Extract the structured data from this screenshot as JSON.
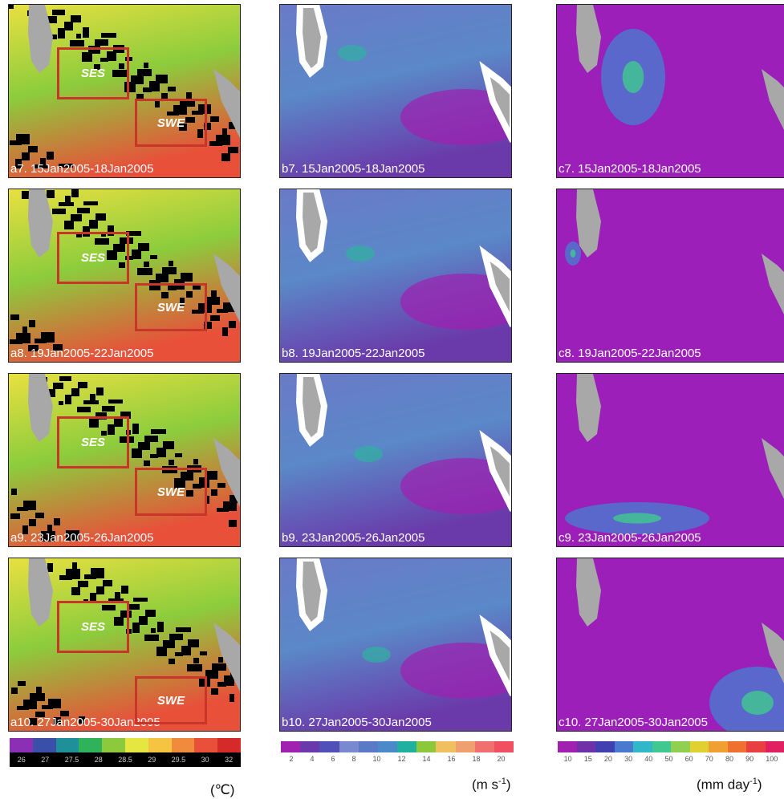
{
  "columns": [
    {
      "panels": [
        {
          "label": "a7. 15Jan2005-18Jan2005",
          "boxes": [
            "SES",
            "SWE"
          ]
        },
        {
          "label": "a8. 19Jan2005-22Jan2005",
          "boxes": [
            "SES",
            "SWE"
          ]
        },
        {
          "label": "a9. 23Jan2005-26Jan2005",
          "boxes": [
            "SES",
            "SWE"
          ]
        },
        {
          "label": "a10. 27Jan2005-30Jan2005",
          "boxes": [
            "SES",
            "SWE"
          ]
        }
      ],
      "colorbar": {
        "colors": [
          "#8b2fb5",
          "#3a4fa8",
          "#1f8f9a",
          "#2eb35a",
          "#8cc93c",
          "#e6e640",
          "#f5c542",
          "#f08a3c",
          "#e8503a",
          "#d42a2a"
        ],
        "ticks": [
          26,
          27,
          27.5,
          28,
          28.5,
          29,
          29.5,
          30,
          32
        ]
      },
      "unit": {
        "base": "(℃)",
        "sup": "",
        "end": ""
      }
    },
    {
      "panels": [
        {
          "label": "b7. 15Jan2005-18Jan2005"
        },
        {
          "label": "b8. 19Jan2005-22Jan2005"
        },
        {
          "label": "b9. 23Jan2005-26Jan2005"
        },
        {
          "label": "b10. 27Jan2005-30Jan2005"
        }
      ],
      "colorbar": {
        "colors": [
          "#a020b0",
          "#6a3aaa",
          "#5050b8",
          "#7a88d0",
          "#5a7ac8",
          "#4a8ac8",
          "#20b0a0",
          "#8cc83c",
          "#f0c060",
          "#f0a070",
          "#f07070",
          "#f05060"
        ],
        "ticks": [
          2,
          4,
          6,
          8,
          10,
          12,
          14,
          16,
          18,
          20
        ]
      },
      "unit": {
        "base": "(m s",
        "sup": "-1",
        "end": ")"
      }
    },
    {
      "panels": [
        {
          "label": "c7. 15Jan2005-18Jan2005"
        },
        {
          "label": "c8. 19Jan2005-22Jan2005"
        },
        {
          "label": "c9. 23Jan2005-26Jan2005"
        },
        {
          "label": "c10. 27Jan2005-30Jan2005"
        }
      ],
      "colorbar": {
        "colors": [
          "#a020b0",
          "#7030a8",
          "#4040b0",
          "#4a7ad0",
          "#30b8c8",
          "#40c890",
          "#90d050",
          "#e0d030",
          "#f0a030",
          "#f07030",
          "#e84040",
          "#e02060"
        ],
        "ticks": [
          10,
          15,
          20,
          30,
          40,
          50,
          60,
          70,
          80,
          90,
          100
        ]
      },
      "unit": {
        "base": "(mm day",
        "sup": "-1",
        "end": ")"
      }
    }
  ]
}
